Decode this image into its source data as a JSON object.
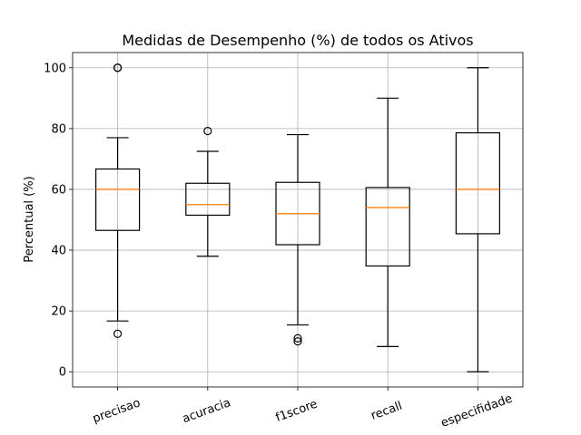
{
  "chart_data": {
    "type": "box",
    "title": "Medidas de Desempenho (%) de todos os Ativos",
    "xlabel": "",
    "ylabel": "Percentual (%)",
    "ylim": [
      -5,
      105
    ],
    "yticks": [
      0,
      20,
      40,
      60,
      80,
      100
    ],
    "grid": true,
    "median_color": "#ff7f0e",
    "categories": [
      "precisao",
      "acuracia",
      "f1score",
      "recall",
      "especifidade"
    ],
    "boxes": [
      {
        "name": "precisao",
        "whisker_low": 16.7,
        "q1": 46.5,
        "median": 60,
        "q3": 66.7,
        "whisker_high": 77,
        "fliers": [
          12.5,
          100,
          100
        ]
      },
      {
        "name": "acuracia",
        "whisker_low": 38,
        "q1": 51.5,
        "median": 55,
        "q3": 62,
        "whisker_high": 72.5,
        "fliers": [
          79.2
        ]
      },
      {
        "name": "f1score",
        "whisker_low": 15.4,
        "q1": 41.8,
        "median": 52,
        "q3": 62.3,
        "whisker_high": 78,
        "fliers": [
          11,
          10
        ]
      },
      {
        "name": "recall",
        "whisker_low": 8.3,
        "q1": 34.8,
        "median": 54,
        "q3": 60.6,
        "whisker_high": 90,
        "fliers": []
      },
      {
        "name": "especifidade",
        "whisker_low": 0,
        "q1": 45.4,
        "median": 60,
        "q3": 78.6,
        "whisker_high": 100,
        "fliers": []
      }
    ]
  }
}
